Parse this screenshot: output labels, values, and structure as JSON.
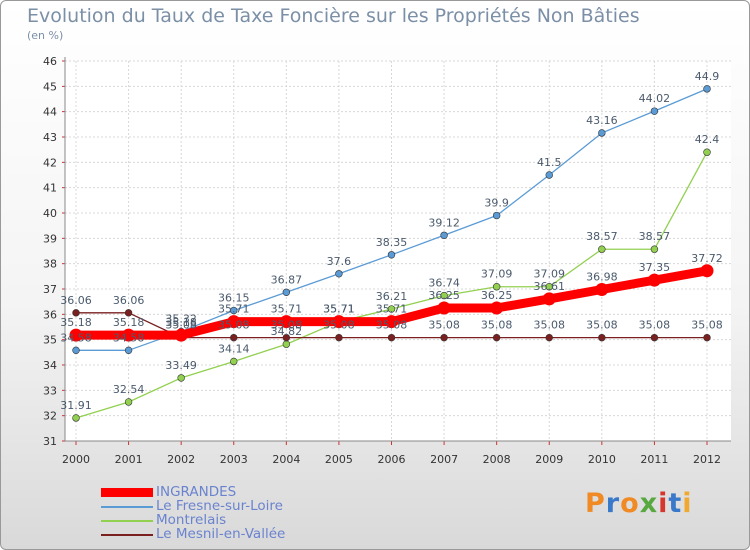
{
  "header": {
    "title": "Evolution du Taux de Taxe Foncière sur les Propriétés Non Bâties",
    "unit": "(en %)"
  },
  "brand": {
    "letters": [
      "P",
      "r",
      "o",
      "x",
      "i",
      "t",
      "i"
    ],
    "colors": [
      "#f08a24",
      "#3a78c9",
      "#f08a24",
      "#57a83f",
      "#d6362e",
      "#3a78c9",
      "#f0a830"
    ]
  },
  "chart_data": {
    "type": "line",
    "x": [
      2000,
      2001,
      2002,
      2003,
      2004,
      2005,
      2006,
      2007,
      2008,
      2009,
      2010,
      2011,
      2012
    ],
    "ylim": [
      31,
      46
    ],
    "yticks": [
      31,
      32,
      33,
      34,
      35,
      36,
      37,
      38,
      39,
      40,
      41,
      42,
      43,
      44,
      45,
      46
    ],
    "grid": true,
    "legend_position": "bottom-left",
    "series": [
      {
        "name": "INGRANDES",
        "color": "#ff0000",
        "values": [
          35.18,
          35.18,
          35.18,
          35.71,
          35.71,
          35.71,
          35.71,
          36.25,
          36.25,
          36.61,
          36.98,
          37.35,
          37.72
        ],
        "labels": [
          "35.18",
          "35.18",
          "35.18",
          "35.71",
          "35.71",
          "35.71",
          "35.71",
          "36.25",
          "36.25",
          "36.61",
          "36.98",
          "37.35",
          "37.72"
        ]
      },
      {
        "name": "Le Fresne-sur-Loire",
        "color": "#5b9bd5",
        "values": [
          34.58,
          34.58,
          35.32,
          36.15,
          36.87,
          37.6,
          38.35,
          39.12,
          39.9,
          41.5,
          43.16,
          44.02,
          44.9
        ],
        "labels": [
          "34.58",
          "34.58",
          "35.32",
          "36.15",
          "36.87",
          "37.6",
          "38.35",
          "39.12",
          "39.9",
          "41.5",
          "43.16",
          "44.02",
          "44.9"
        ]
      },
      {
        "name": "Montrelais",
        "color": "#92d050",
        "values": [
          31.91,
          32.54,
          33.49,
          34.14,
          34.82,
          35.71,
          36.21,
          36.74,
          37.09,
          37.09,
          38.57,
          38.57,
          42.4
        ],
        "labels": [
          "31.91",
          "32.54",
          "33.49",
          "34.14",
          "34.82",
          "35.71",
          "36.21",
          "36.74",
          "37.09",
          "37.09",
          "38.57",
          "38.57",
          "42.4"
        ]
      },
      {
        "name": "Le Mesnil-en-Vallée",
        "color": "#7a2020",
        "values": [
          36.06,
          36.06,
          35.08,
          35.08,
          35.08,
          35.08,
          35.08,
          35.08,
          35.08,
          35.08,
          35.08,
          35.08,
          35.08
        ],
        "labels": [
          "36.06",
          "36.06",
          "35.08",
          "35.08",
          "35.08",
          "35.08",
          "35.08",
          "35.08",
          "35.08",
          "35.08",
          "35.08",
          "35.08",
          "35.08"
        ]
      }
    ]
  }
}
